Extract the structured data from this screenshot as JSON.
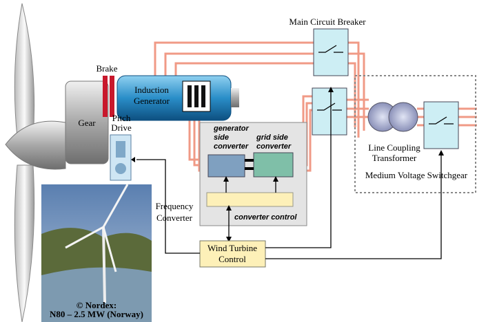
{
  "labels": {
    "main_breaker": "Main Circuit Breaker",
    "brake": "Brake",
    "generator": [
      "Induction",
      "Generator"
    ],
    "gear": "Gear",
    "pitch_drive": [
      "Pitch",
      "Drive"
    ],
    "gen_side_converter": [
      "generator",
      "side",
      "converter"
    ],
    "grid_side_converter": [
      "grid side",
      "converter"
    ],
    "converter_control": "converter control",
    "frequency_converter": [
      "Frequency",
      "Converter"
    ],
    "transformer": [
      "Line Coupling",
      "Transformer"
    ],
    "switchgear": "Medium Voltage Switchgear",
    "turbine_control": [
      "Wind Turbine",
      "Control"
    ],
    "photo_credit": [
      "© Nordex:",
      "N80 – 2.5 MW (Norway)"
    ]
  }
}
